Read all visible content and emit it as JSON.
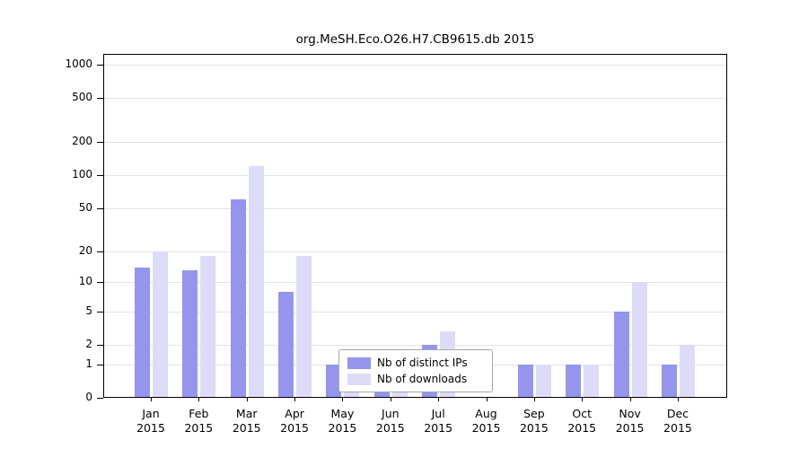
{
  "chart_data": {
    "type": "bar",
    "title": "org.MeSH.Eco.O26.H7.CB9615.db 2015",
    "yscale": "log1p",
    "ylim": [
      0,
      1000
    ],
    "yticks": [
      0,
      1,
      2,
      5,
      10,
      20,
      50,
      100,
      200,
      500,
      1000
    ],
    "grid": true,
    "legend_position": "lower center",
    "categories": [
      {
        "month": "Jan",
        "year": "2015"
      },
      {
        "month": "Feb",
        "year": "2015"
      },
      {
        "month": "Mar",
        "year": "2015"
      },
      {
        "month": "Apr",
        "year": "2015"
      },
      {
        "month": "May",
        "year": "2015"
      },
      {
        "month": "Jun",
        "year": "2015"
      },
      {
        "month": "Jul",
        "year": "2015"
      },
      {
        "month": "Aug",
        "year": "2015"
      },
      {
        "month": "Sep",
        "year": "2015"
      },
      {
        "month": "Oct",
        "year": "2015"
      },
      {
        "month": "Nov",
        "year": "2015"
      },
      {
        "month": "Dec",
        "year": "2015"
      }
    ],
    "series": [
      {
        "name": "Nb of distinct IPs",
        "color": "#9595ee",
        "values": [
          14,
          13,
          60,
          8,
          1,
          1,
          2,
          0,
          1,
          1,
          5,
          1
        ]
      },
      {
        "name": "Nb of downloads",
        "color": "#dcdcf8",
        "values": [
          20,
          18,
          120,
          18,
          1,
          1,
          3,
          0,
          1,
          1,
          10,
          2
        ]
      }
    ]
  },
  "colors": {
    "background": "#ffffff",
    "grid": "#e3e3e3",
    "axis": "#000000",
    "legend_border": "#a6a6a6"
  }
}
